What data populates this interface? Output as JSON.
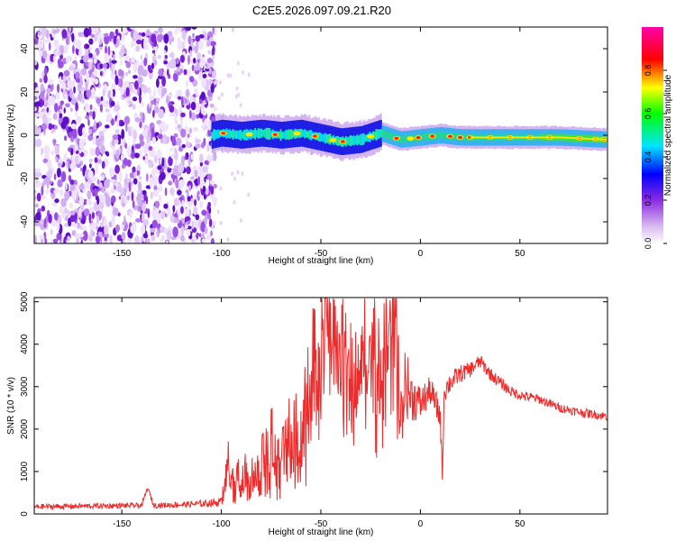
{
  "title": "C2E5.2026.097.09.21.R20",
  "chart_data": [
    {
      "type": "heatmap",
      "xlabel": "Height of straight line (km)",
      "ylabel": "Frequency (Hz)",
      "xlim": [
        -194,
        94
      ],
      "ylim": [
        -50,
        50
      ],
      "xticks": [
        -150,
        -100,
        -50,
        0,
        50
      ],
      "yticks": [
        -40,
        -20,
        0,
        20,
        40
      ],
      "noise_region_km": [
        -194,
        -105
      ],
      "signal_track": {
        "description_points_km": [
          -105,
          -100,
          -90,
          -80,
          -70,
          -60,
          -50,
          -40,
          -30,
          -20,
          -10,
          0,
          10,
          20,
          30,
          50,
          70,
          93
        ],
        "center_freq_hz": [
          0,
          1,
          0,
          1,
          0,
          1,
          -1,
          -3,
          -2,
          1,
          -2,
          -1,
          0,
          -1,
          -1,
          -1,
          -1,
          -2
        ]
      },
      "colorbar": {
        "label": "Normalized spectral amplitude",
        "range": [
          0.0,
          1.0
        ],
        "ticks": [
          "0.0",
          "0.2",
          "0.4",
          "0.6",
          "0.8"
        ],
        "colormap": [
          "#ffffff",
          "#8a2be2",
          "#0000ff",
          "#00ffff",
          "#00ff00",
          "#ffff00",
          "#ff0000",
          "#ff00ff"
        ]
      }
    },
    {
      "type": "line",
      "xlabel": "Height of straight line (km)",
      "ylabel": "SNR (10 * v/v)",
      "xlim": [
        -194,
        94
      ],
      "ylim": [
        0,
        5100
      ],
      "xticks": [
        -150,
        -100,
        -50,
        0,
        50
      ],
      "yticks": [
        0,
        1000,
        2000,
        3000,
        4000,
        5000
      ],
      "series": [
        {
          "name": "SNR",
          "color": "#ee2a2a",
          "x": [
            -194,
            -160,
            -140,
            -137,
            -134,
            -120,
            -110,
            -100,
            -97,
            -94,
            -90,
            -85,
            -80,
            -75,
            -70,
            -65,
            -60,
            -55,
            -50,
            -47,
            -45,
            -40,
            -35,
            -30,
            -25,
            -20,
            -17,
            -15,
            -12,
            -10,
            -8,
            -5,
            0,
            5,
            10,
            11,
            12,
            15,
            20,
            25,
            30,
            35,
            40,
            45,
            50,
            60,
            70,
            80,
            94
          ],
          "y": [
            170,
            190,
            200,
            620,
            200,
            220,
            240,
            280,
            1100,
            800,
            1000,
            700,
            1300,
            1400,
            1500,
            1600,
            1500,
            3000,
            3200,
            4800,
            4600,
            3500,
            3000,
            3200,
            3500,
            3500,
            4500,
            3600,
            4000,
            2800,
            3200,
            2800,
            2600,
            2900,
            2300,
            900,
            2900,
            3100,
            3300,
            3400,
            3600,
            3300,
            3100,
            2900,
            2800,
            2700,
            2500,
            2400,
            2300
          ],
          "spread": [
            90,
            90,
            90,
            60,
            90,
            100,
            110,
            150,
            700,
            600,
            650,
            700,
            900,
            1100,
            1200,
            1300,
            1400,
            1800,
            2000,
            2200,
            2200,
            2000,
            1900,
            2000,
            2200,
            2300,
            2400,
            2300,
            2200,
            1400,
            1300,
            900,
            600,
            500,
            500,
            200,
            400,
            350,
            300,
            260,
            240,
            220,
            200,
            180,
            170,
            160,
            150,
            150,
            150
          ]
        }
      ]
    }
  ]
}
